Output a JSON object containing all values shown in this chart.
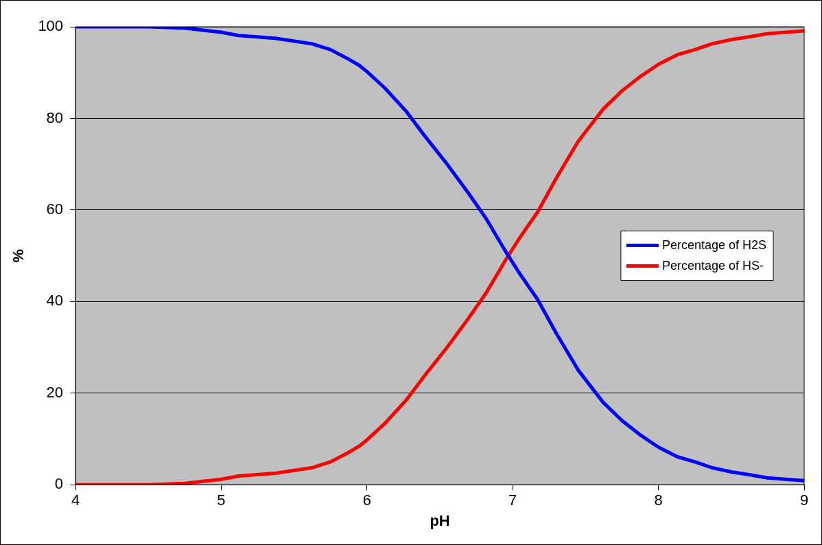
{
  "chart_data": {
    "type": "line",
    "xlabel": "pH",
    "ylabel": "%",
    "xlim": [
      4,
      9
    ],
    "xticks": [
      4,
      5,
      6,
      7,
      8,
      9
    ],
    "ylim": [
      0,
      100
    ],
    "yticks": [
      0,
      20,
      40,
      60,
      80,
      100
    ],
    "grid": "y",
    "legend": "right",
    "marker": "none",
    "line_style": "solid",
    "x": [
      4,
      4.5,
      4.75,
      5,
      5.12,
      5.37,
      5.62,
      5.75,
      5.87,
      5.95,
      6,
      6.12,
      6.27,
      6.4,
      6.55,
      6.7,
      6.82,
      6.95,
      7.05,
      7.17,
      7.3,
      7.45,
      7.62,
      7.75,
      7.87,
      8,
      8.13,
      8.25,
      8.37,
      8.5,
      8.62,
      8.75,
      9
    ],
    "series": [
      {
        "name": "Percentage of H2S",
        "color": "#0000ff",
        "values": [
          100,
          100,
          99.7,
          98.8,
          98.1,
          97.5,
          96.3,
          95,
          93,
          91.5,
          90.2,
          86.7,
          81.5,
          76,
          70,
          63.5,
          58,
          51,
          46,
          40.5,
          33,
          25,
          18,
          14,
          11,
          8.2,
          6.1,
          5,
          3.7,
          2.8,
          2.2,
          1.5,
          0.9
        ]
      },
      {
        "name": "Percentage of HS-",
        "color": "#ff0000",
        "values": [
          0,
          0,
          0.3,
          1.2,
          1.9,
          2.5,
          3.7,
          5,
          7,
          8.5,
          9.8,
          13.3,
          18.5,
          24,
          30,
          36.5,
          42,
          49,
          54,
          59.5,
          67,
          75,
          82,
          86,
          89,
          91.8,
          93.9,
          95,
          96.3,
          97.2,
          97.8,
          98.5,
          99.1
        ]
      }
    ]
  }
}
